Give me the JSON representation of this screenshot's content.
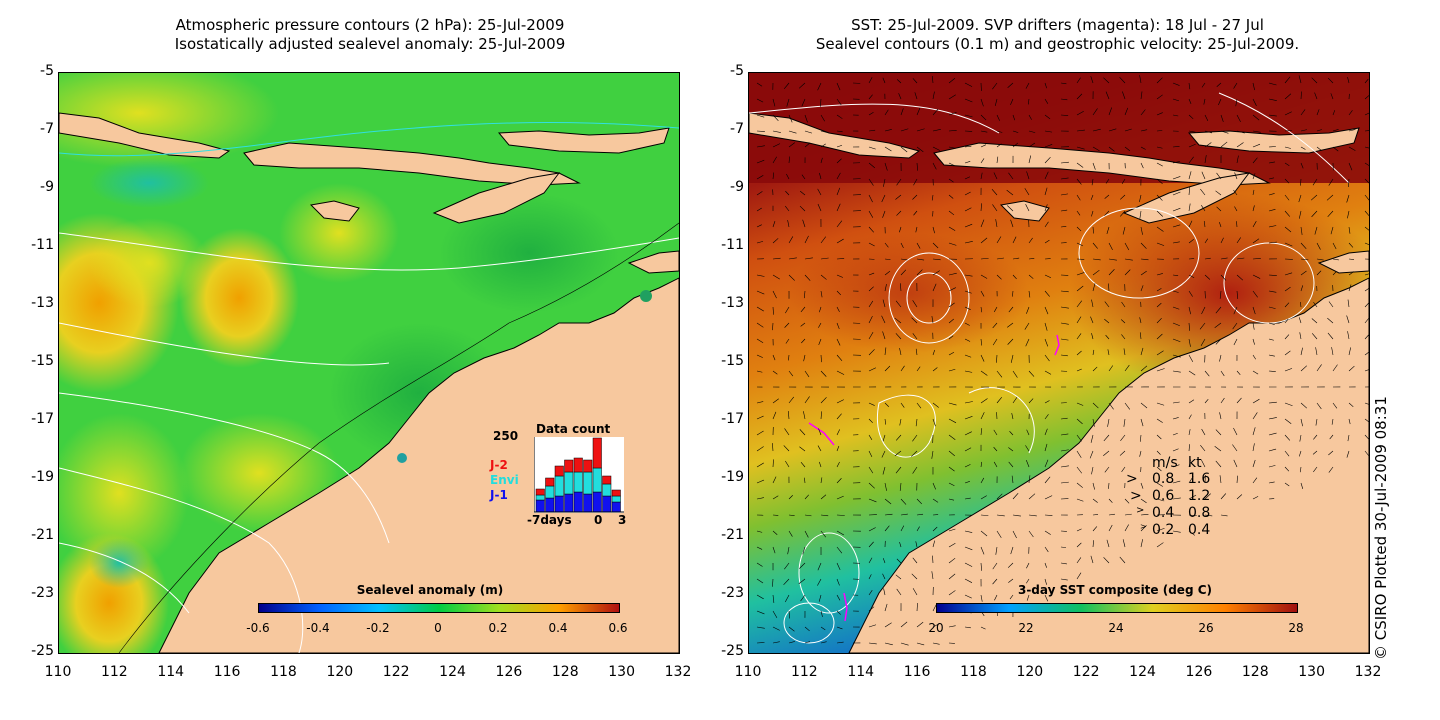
{
  "left_panel": {
    "title_line1": "Atmospheric pressure contours (2 hPa): 25-Jul-2009",
    "title_line2": "Isostatically adjusted sealevel anomaly: 25-Jul-2009",
    "colorbar": {
      "label": "Sealevel anomaly (m)",
      "ticks": [
        "-0.6",
        "-0.4",
        "-0.2",
        "0",
        "0.2",
        "0.4",
        "0.6"
      ],
      "colors": [
        "#00008b",
        "#0060ff",
        "#00c0ff",
        "#00cc44",
        "#a0e020",
        "#ffa000",
        "#b01010"
      ]
    },
    "data_count_inset": {
      "title": "Data count",
      "ymax": "250",
      "legend": [
        {
          "name": "J-2",
          "color": "#ee1111"
        },
        {
          "name": "Envi",
          "color": "#22dddd"
        },
        {
          "name": "J-1",
          "color": "#1111ee"
        }
      ],
      "xlabel_left": "-7days",
      "xlabel_mid": "0",
      "xlabel_right": "3"
    }
  },
  "right_panel": {
    "title_line1": "SST: 25-Jul-2009. SVP drifters (magenta): 18 Jul - 27 Jul",
    "title_line2": "Sealevel contours (0.1 m) and geostrophic velocity: 25-Jul-2009.",
    "colorbar": {
      "label": "3-day SST composite (deg C)",
      "ticks": [
        "20",
        "22",
        "24",
        "26",
        "28"
      ],
      "colors": [
        "#000090",
        "#00a0ff",
        "#10c060",
        "#e0d020",
        "#ff8000",
        "#a01010"
      ]
    },
    "velocity_legend": {
      "header_ms": "m/s",
      "header_kt": "kt",
      "rows": [
        {
          "ms": "0.8",
          "kt": "1.6"
        },
        {
          "ms": "0.6",
          "kt": "1.2"
        },
        {
          "ms": "0.4",
          "kt": "0.8"
        },
        {
          "ms": "0.2",
          "kt": "0.4"
        }
      ]
    }
  },
  "axes": {
    "y_ticks": [
      "-5",
      "-7",
      "-9",
      "-11",
      "-13",
      "-15",
      "-17",
      "-19",
      "-21",
      "-23",
      "-25"
    ],
    "x_ticks": [
      "110",
      "112",
      "114",
      "116",
      "118",
      "120",
      "122",
      "124",
      "126",
      "128",
      "130",
      "132"
    ]
  },
  "credit": "© CSIRO Plotted 30-Jul-2009 08:31",
  "colors": {
    "land": "#f7c89e",
    "sea_left_base": "#40d040",
    "sea_right_base": "#d84a10"
  }
}
